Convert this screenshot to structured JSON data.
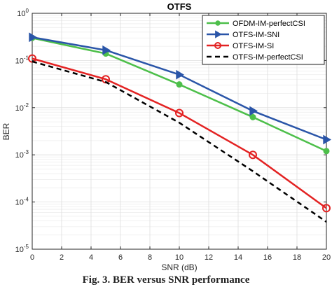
{
  "chart_data": {
    "type": "line",
    "title": "OTFS",
    "xlabel": "SNR (dB)",
    "ylabel": "BER",
    "xlim": [
      0,
      20
    ],
    "ylim": [
      1e-05,
      1
    ],
    "yscale": "log",
    "grid": true,
    "legend_position": "top-right",
    "x_ticks": [
      "0",
      "2",
      "4",
      "6",
      "8",
      "10",
      "12",
      "14",
      "16",
      "18",
      "20"
    ],
    "y_ticks": [
      {
        "base": "10",
        "exp": "0"
      },
      {
        "base": "10",
        "exp": "-1"
      },
      {
        "base": "10",
        "exp": "-2"
      },
      {
        "base": "10",
        "exp": "-3"
      },
      {
        "base": "10",
        "exp": "-4"
      },
      {
        "base": "10",
        "exp": "-5"
      }
    ],
    "series": [
      {
        "name": "OFDM-IM-perfectCSI",
        "color": "#4dbf4a",
        "marker": "circle-filled",
        "dash": false,
        "x": [
          0,
          5,
          10,
          15,
          20
        ],
        "y": [
          0.3,
          0.14,
          0.031,
          0.0063,
          0.0012
        ]
      },
      {
        "name": "OTFS-IM-SNI",
        "color": "#2a55a8",
        "marker": "triangle-right",
        "dash": false,
        "x": [
          0,
          5,
          10,
          15,
          20
        ],
        "y": [
          0.31,
          0.165,
          0.05,
          0.0085,
          0.0021
        ]
      },
      {
        "name": "OTFS-IM-SI",
        "color": "#e32222",
        "marker": "circle-open",
        "dash": false,
        "x": [
          0,
          5,
          10,
          15,
          20
        ],
        "y": [
          0.11,
          0.04,
          0.0077,
          0.001,
          7.4e-05
        ]
      },
      {
        "name": "OTFS-IM-perfectCSI",
        "color": "#000000",
        "marker": "none",
        "dash": true,
        "x": [
          0,
          5,
          10,
          15,
          20
        ],
        "y": [
          0.095,
          0.035,
          0.0048,
          0.00045,
          3.8e-05
        ]
      }
    ]
  },
  "caption": "Fig. 3.  BER versus SNR performance"
}
